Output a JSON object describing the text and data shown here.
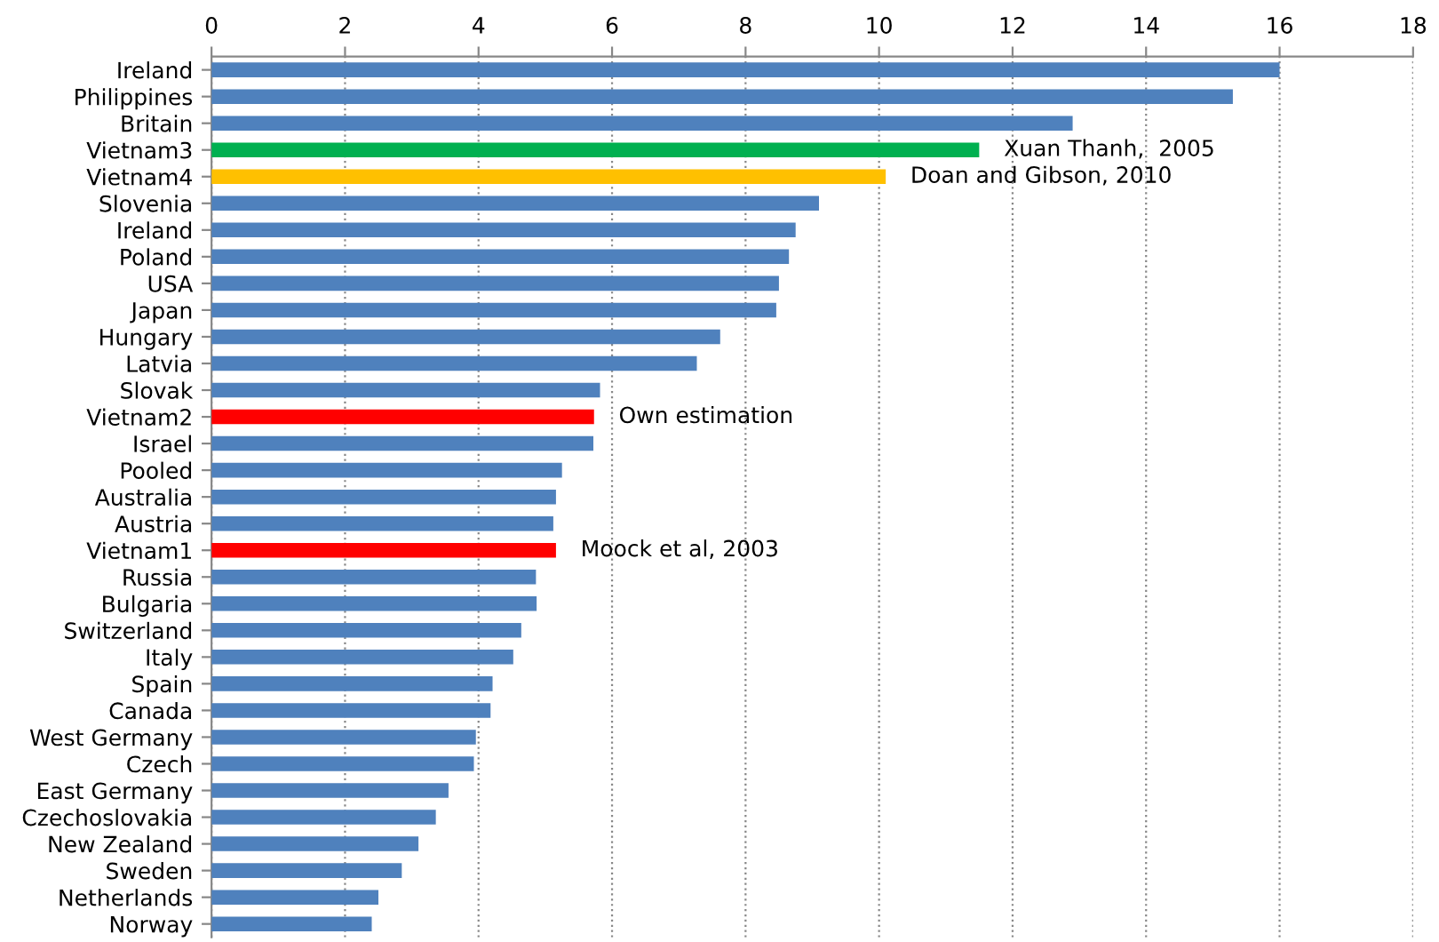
{
  "chart_data": {
    "type": "bar",
    "orientation": "horizontal",
    "categories": [
      "Ireland",
      "Philippines",
      "Britain",
      "Vietnam3",
      "Vietnam4",
      "Slovenia",
      "Ireland",
      "Poland",
      "USA",
      "Japan",
      "Hungary",
      "Latvia",
      "Slovak",
      "Vietnam2",
      "Israel",
      "Pooled",
      "Australia",
      "Austria",
      "Vietnam1",
      "Russia",
      "Bulgaria",
      "Switzerland",
      "Italy",
      "Spain",
      "Canada",
      "West Germany",
      "Czech",
      "East Germany",
      "Czechoslovakia",
      "New Zealand",
      "Sweden",
      "Netherlands",
      "Norway"
    ],
    "values": [
      16.0,
      15.3,
      12.9,
      11.5,
      10.1,
      9.1,
      8.75,
      8.65,
      8.5,
      8.46,
      7.62,
      7.27,
      5.82,
      5.73,
      5.72,
      5.25,
      5.16,
      5.12,
      5.16,
      4.86,
      4.87,
      4.64,
      4.52,
      4.21,
      4.18,
      3.96,
      3.93,
      3.55,
      3.36,
      3.1,
      2.85,
      2.5,
      2.4
    ],
    "colors": [
      "#4f81bd",
      "#4f81bd",
      "#4f81bd",
      "#00b050",
      "#ffc000",
      "#4f81bd",
      "#4f81bd",
      "#4f81bd",
      "#4f81bd",
      "#4f81bd",
      "#4f81bd",
      "#4f81bd",
      "#4f81bd",
      "#ff0000",
      "#4f81bd",
      "#4f81bd",
      "#4f81bd",
      "#4f81bd",
      "#ff0000",
      "#4f81bd",
      "#4f81bd",
      "#4f81bd",
      "#4f81bd",
      "#4f81bd",
      "#4f81bd",
      "#4f81bd",
      "#4f81bd",
      "#4f81bd",
      "#4f81bd",
      "#4f81bd",
      "#4f81bd",
      "#4f81bd",
      "#4f81bd"
    ],
    "xlim": [
      0,
      18
    ],
    "xticks": [
      0,
      2,
      4,
      6,
      8,
      10,
      12,
      14,
      16,
      18
    ],
    "grid": "x",
    "legend": false,
    "annotations": [
      {
        "text": "Xuan Thanh,  2005",
        "x": 11.5,
        "y": "Vietnam3"
      },
      {
        "text": "Doan and Gibson, 2010",
        "x": 10.1,
        "y": "Vietnam4"
      },
      {
        "text": "Own estimation",
        "x": 5.73,
        "y": "Vietnam2"
      },
      {
        "text": "Moock et al, 2003",
        "x": 5.16,
        "y": "Vietnam1"
      }
    ]
  }
}
